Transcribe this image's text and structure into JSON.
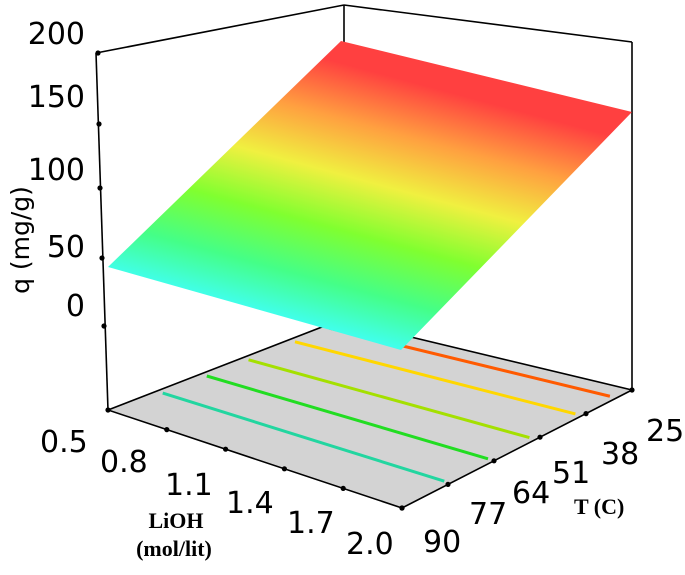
{
  "chart_data": {
    "type": "surface3d",
    "zlabel": "q (mg/g)",
    "xlabel_line1": "LiOH",
    "xlabel_line2": "(mol/lit)",
    "ylabel": "T (C)",
    "z_ticks": [
      "0",
      "50",
      "100",
      "150",
      "200"
    ],
    "x_ticks": [
      "0.5",
      "0.8",
      "1.1",
      "1.4",
      "1.7",
      "2.0"
    ],
    "y_ticks": [
      "25",
      "38",
      "51",
      "64",
      "77",
      "90"
    ],
    "z_range": [
      -40,
      200
    ],
    "lioh_range": [
      0.5,
      2.0
    ],
    "temp_range": [
      25,
      90
    ],
    "surface_corners": {
      "lioh_0.5_temp_25": 198,
      "lioh_0.5_temp_90": 30,
      "lioh_2.0_temp_25": 200,
      "lioh_2.0_temp_90": 30
    },
    "contour_colors": [
      "#ff5a00",
      "#ffd700",
      "#a4e000",
      "#22dd22",
      "#22d6a0"
    ],
    "colormap": [
      "#40ffff",
      "#44ff88",
      "#80ff30",
      "#f0f040",
      "#ffa040",
      "#ff4040"
    ],
    "floor_color": "#d3d3d3"
  }
}
